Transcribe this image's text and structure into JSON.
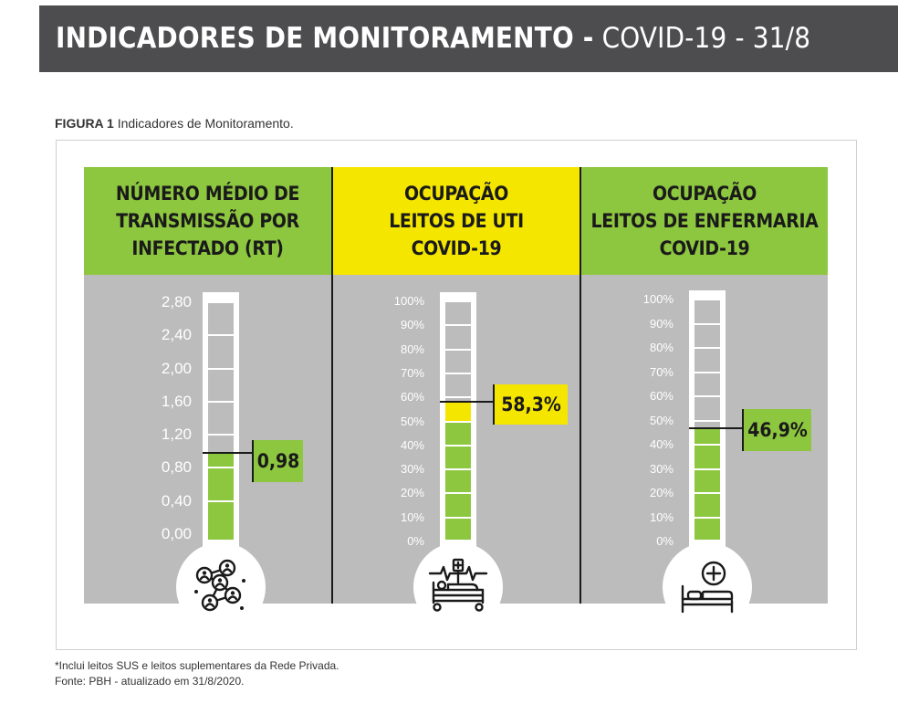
{
  "header": {
    "title_bold": "INDICADORES DE MONITORAMENTO -",
    "title_rest": "COVID-19 - 31/8"
  },
  "figure_caption": {
    "label": "FIGURA 1",
    "text": "Indicadores de Monitoramento."
  },
  "chart_data": [
    {
      "type": "bar",
      "title_lines": [
        "NÚMERO MÉDIO DE",
        "TRANSMISSÃO POR",
        "INFECTADO (RT)"
      ],
      "value": 0.98,
      "value_label": "0,98",
      "ylim": [
        0,
        2.8
      ],
      "ticks": [
        "0,00",
        "0,40",
        "0,80",
        "1,20",
        "1,60",
        "2,00",
        "2,40",
        "2,80"
      ],
      "tick_values": [
        0,
        0.4,
        0.8,
        1.2,
        1.6,
        2.0,
        2.4,
        2.8
      ],
      "header_color": "#8dc63f",
      "fill_color": "#8dc63f",
      "icon": "network-people-icon"
    },
    {
      "type": "bar",
      "title_lines": [
        "OCUPAÇÃO",
        "LEITOS DE UTI",
        "COVID-19"
      ],
      "value": 58.3,
      "value_label": "58,3%",
      "ylim": [
        0,
        100
      ],
      "ticks": [
        "0%",
        "10%",
        "20%",
        "30%",
        "40%",
        "50%",
        "60%",
        "70%",
        "80%",
        "90%",
        "100%"
      ],
      "tick_values": [
        0,
        10,
        20,
        30,
        40,
        50,
        60,
        70,
        80,
        90,
        100
      ],
      "header_color": "#f5e600",
      "fill_color": "#8dc63f",
      "highlight_color": "#f5e600",
      "highlight_from": 50,
      "icon": "icu-bed-icon"
    },
    {
      "type": "bar",
      "title_lines": [
        "OCUPAÇÃO",
        "LEITOS DE ENFERMARIA",
        "COVID-19"
      ],
      "value": 46.9,
      "value_label": "46,9%",
      "ylim": [
        0,
        100
      ],
      "ticks": [
        "0%",
        "10%",
        "20%",
        "30%",
        "40%",
        "50%",
        "60%",
        "70%",
        "80%",
        "90%",
        "100%"
      ],
      "tick_values": [
        0,
        10,
        20,
        30,
        40,
        50,
        60,
        70,
        80,
        90,
        100
      ],
      "header_color": "#8dc63f",
      "fill_color": "#8dc63f",
      "icon": "ward-bed-icon"
    }
  ],
  "footer": {
    "note": "*Inclui leitos SUS e leitos suplementares da Rede Privada.",
    "source": "Fonte: PBH - atualizado em 31/8/2020."
  },
  "colors": {
    "header_bg": "#4d4d4f",
    "panel_bg": "#bcbcbc",
    "green": "#8dc63f",
    "yellow": "#f5e600"
  }
}
